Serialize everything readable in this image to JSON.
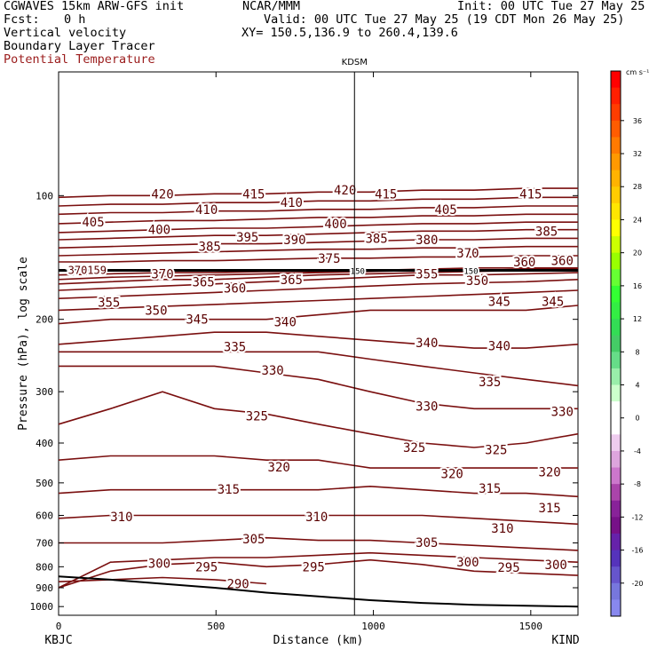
{
  "header": {
    "model": "CGWAVES 15km ARW-GFS init",
    "org": "NCAR/MMM",
    "init": "Init: 00 UTC Tue 27 May 25",
    "fcst_label": "Fcst:",
    "fcst_value": "0 h",
    "valid": "Valid: 00 UTC Tue 27 May 25 (19 CDT Mon 26 May 25)",
    "field1": "Vertical velocity",
    "xy": "XY= 150.5,136.9 to 260.4,139.6",
    "field2": "Boundary Layer Tracer",
    "field3": "Potential Temperature"
  },
  "chart_data": {
    "type": "contour cross-section",
    "xlabel": "Distance (km)",
    "ylabel": "Pressure (hPa), log scale",
    "xlim": [
      0,
      1650
    ],
    "ylim": [
      1050,
      50
    ],
    "x_ticks": [
      0,
      500,
      1000,
      1500
    ],
    "y_ticks": [
      100,
      200,
      300,
      400,
      500,
      600,
      700,
      800,
      900,
      1000
    ],
    "station_top": "KDSM",
    "station_top_x": 940,
    "station_left": "KBJC",
    "station_right": "KIND",
    "colorbar": {
      "unit": "cm s⁻¹",
      "tick_labels": [
        "36",
        "32",
        "28",
        "24",
        "20",
        "16",
        "12",
        "8",
        "4",
        "0",
        "-4",
        "-8",
        "-12",
        "-16",
        "-20"
      ],
      "colors": [
        "#ff0000",
        "#ff1f00",
        "#ff3d00",
        "#ff5c00",
        "#ff7a00",
        "#ff9900",
        "#ffb300",
        "#ffcc00",
        "#ffe600",
        "#ffff00",
        "#ccff00",
        "#99ff00",
        "#66ff33",
        "#33ff33",
        "#33ee44",
        "#33dd55",
        "#44cc66",
        "#66dd88",
        "#99eeaa",
        "#ccffcc",
        "#ffffff",
        "#ffffff",
        "#eeccee",
        "#dda5dd",
        "#cc77cc",
        "#aa44aa",
        "#882299",
        "#771188",
        "#6622aa",
        "#5533bb",
        "#6655cc",
        "#7777dd",
        "#8888ee"
      ]
    },
    "tracer_contour_label": "150",
    "isentropes": [
      {
        "theta": 290,
        "p": [
          870,
          860,
          850,
          860,
          880
        ]
      },
      {
        "theta": 295,
        "p": [
          900,
          820,
          790,
          780,
          800,
          790,
          770,
          790,
          820,
          830,
          840
        ]
      },
      {
        "theta": 300,
        "p": [
          900,
          780,
          770,
          760,
          760,
          750,
          740,
          750,
          760,
          770,
          780
        ]
      },
      {
        "theta": 305,
        "p": [
          700,
          700,
          700,
          690,
          680,
          690,
          690,
          700,
          710,
          720,
          730
        ]
      },
      {
        "theta": 310,
        "p": [
          610,
          600,
          600,
          600,
          600,
          600,
          600,
          600,
          610,
          620,
          630
        ]
      },
      {
        "theta": 315,
        "p": [
          530,
          520,
          520,
          520,
          520,
          520,
          510,
          520,
          530,
          530,
          540
        ]
      },
      {
        "theta": 320,
        "p": [
          440,
          430,
          430,
          430,
          440,
          440,
          460,
          460,
          460,
          460,
          460
        ]
      },
      {
        "theta": 325,
        "p": [
          360,
          330,
          300,
          330,
          340,
          360,
          380,
          400,
          410,
          400,
          380
        ]
      },
      {
        "theta": 330,
        "p": [
          260,
          260,
          260,
          260,
          270,
          280,
          300,
          320,
          330,
          330,
          330
        ]
      },
      {
        "theta": 335,
        "p": [
          240,
          240,
          240,
          240,
          240,
          240,
          250,
          260,
          270,
          280,
          290
        ]
      },
      {
        "theta": 340,
        "p": [
          230,
          225,
          220,
          215,
          215,
          220,
          225,
          230,
          235,
          235,
          230
        ]
      },
      {
        "theta": 345,
        "p": [
          205,
          200,
          200,
          200,
          200,
          195,
          190,
          190,
          190,
          190,
          185
        ]
      },
      {
        "theta": 350,
        "p": [
          190,
          188,
          186,
          184,
          182,
          180,
          178,
          176,
          174,
          172,
          170
        ]
      },
      {
        "theta": 355,
        "p": [
          178,
          176,
          174,
          172,
          170,
          168,
          166,
          164,
          163,
          162,
          160
        ]
      },
      {
        "theta": 360,
        "p": [
          170,
          168,
          166,
          164,
          162,
          160,
          158,
          156,
          156,
          155,
          154
        ]
      },
      {
        "theta": 365,
        "p": [
          164,
          162,
          160,
          160,
          158,
          156,
          155,
          154,
          153,
          152,
          152
        ]
      },
      {
        "theta": 370,
        "p": [
          160,
          158,
          157,
          156,
          155,
          154,
          153,
          152,
          152,
          151,
          151
        ]
      },
      {
        "theta": 375,
        "p": [
          156,
          155,
          154,
          154,
          153,
          153,
          152,
          151,
          150,
          150,
          150
        ]
      },
      {
        "theta": 380,
        "p": [
          145,
          145,
          144,
          144,
          143,
          142,
          142,
          141,
          141,
          140,
          140
        ]
      },
      {
        "theta": 385,
        "p": [
          140,
          139,
          138,
          137,
          136,
          135,
          135,
          134,
          134,
          133,
          133
        ]
      },
      {
        "theta": 390,
        "p": [
          134,
          133,
          132,
          131,
          131,
          130,
          129,
          128,
          128,
          127,
          127
        ]
      },
      {
        "theta": 395,
        "p": [
          128,
          127,
          126,
          125,
          125,
          124,
          123,
          122,
          122,
          121,
          121
        ]
      },
      {
        "theta": 400,
        "p": [
          123,
          122,
          121,
          120,
          120,
          119,
          118,
          117,
          117,
          116,
          116
        ]
      },
      {
        "theta": 405,
        "p": [
          117,
          116,
          115,
          115,
          114,
          113,
          113,
          112,
          112,
          111,
          111
        ]
      },
      {
        "theta": 410,
        "p": [
          111,
          110,
          110,
          109,
          109,
          108,
          108,
          107,
          107,
          106,
          106
        ]
      },
      {
        "theta": 415,
        "p": [
          106,
          105,
          105,
          104,
          104,
          103,
          103,
          102,
          102,
          101,
          101
        ]
      },
      {
        "theta": 420,
        "p": [
          101,
          100,
          100,
          99,
          99,
          98,
          98,
          97,
          97,
          96,
          96
        ]
      }
    ],
    "isentrope_x": [
      0,
      165,
      330,
      495,
      660,
      825,
      990,
      1155,
      1320,
      1485,
      1650
    ],
    "contour_labels": [
      {
        "text": "420",
        "x": 330,
        "p": 99
      },
      {
        "text": "415",
        "x": 620,
        "p": 99
      },
      {
        "text": "420",
        "x": 910,
        "p": 97
      },
      {
        "text": "415",
        "x": 1040,
        "p": 99
      },
      {
        "text": "415",
        "x": 1500,
        "p": 99
      },
      {
        "text": "410",
        "x": 470,
        "p": 108
      },
      {
        "text": "410",
        "x": 740,
        "p": 104
      },
      {
        "text": "405",
        "x": 110,
        "p": 116
      },
      {
        "text": "405",
        "x": 1230,
        "p": 108
      },
      {
        "text": "400",
        "x": 320,
        "p": 121
      },
      {
        "text": "400",
        "x": 880,
        "p": 117
      },
      {
        "text": "395",
        "x": 600,
        "p": 126
      },
      {
        "text": "390",
        "x": 750,
        "p": 128
      },
      {
        "text": "385",
        "x": 480,
        "p": 133
      },
      {
        "text": "385",
        "x": 1010,
        "p": 127
      },
      {
        "text": "385",
        "x": 1550,
        "p": 122
      },
      {
        "text": "380",
        "x": 1170,
        "p": 128
      },
      {
        "text": "370",
        "x": 1300,
        "p": 138
      },
      {
        "text": "375",
        "x": 860,
        "p": 142
      },
      {
        "text": "370",
        "x": 330,
        "p": 155
      },
      {
        "text": "365",
        "x": 460,
        "p": 162
      },
      {
        "text": "360",
        "x": 560,
        "p": 168
      },
      {
        "text": "365",
        "x": 740,
        "p": 160
      },
      {
        "text": "355",
        "x": 1170,
        "p": 155
      },
      {
        "text": "350",
        "x": 1330,
        "p": 161
      },
      {
        "text": "355",
        "x": 160,
        "p": 182
      },
      {
        "text": "350",
        "x": 310,
        "p": 190
      },
      {
        "text": "345",
        "x": 440,
        "p": 200
      },
      {
        "text": "345",
        "x": 1400,
        "p": 181
      },
      {
        "text": "345",
        "x": 1570,
        "p": 181
      },
      {
        "text": "360",
        "x": 1480,
        "p": 145
      },
      {
        "text": "360",
        "x": 1600,
        "p": 144
      },
      {
        "text": "340",
        "x": 720,
        "p": 203
      },
      {
        "text": "335",
        "x": 560,
        "p": 233
      },
      {
        "text": "340",
        "x": 1170,
        "p": 228
      },
      {
        "text": "340",
        "x": 1400,
        "p": 232
      },
      {
        "text": "330",
        "x": 680,
        "p": 266
      },
      {
        "text": "335",
        "x": 1370,
        "p": 284
      },
      {
        "text": "325",
        "x": 630,
        "p": 344
      },
      {
        "text": "330",
        "x": 1170,
        "p": 325
      },
      {
        "text": "330",
        "x": 1600,
        "p": 335
      },
      {
        "text": "325",
        "x": 1130,
        "p": 410
      },
      {
        "text": "325",
        "x": 1390,
        "p": 415
      },
      {
        "text": "320",
        "x": 700,
        "p": 458
      },
      {
        "text": "320",
        "x": 1250,
        "p": 475
      },
      {
        "text": "320",
        "x": 1560,
        "p": 470
      },
      {
        "text": "315",
        "x": 540,
        "p": 518
      },
      {
        "text": "315",
        "x": 1370,
        "p": 515
      },
      {
        "text": "315",
        "x": 1560,
        "p": 575
      },
      {
        "text": "310",
        "x": 200,
        "p": 605
      },
      {
        "text": "310",
        "x": 820,
        "p": 605
      },
      {
        "text": "310",
        "x": 1410,
        "p": 645
      },
      {
        "text": "305",
        "x": 620,
        "p": 685
      },
      {
        "text": "305",
        "x": 1170,
        "p": 698
      },
      {
        "text": "300",
        "x": 320,
        "p": 785
      },
      {
        "text": "295",
        "x": 470,
        "p": 800
      },
      {
        "text": "295",
        "x": 810,
        "p": 800
      },
      {
        "text": "300",
        "x": 1300,
        "p": 780
      },
      {
        "text": "295",
        "x": 1430,
        "p": 802
      },
      {
        "text": "300",
        "x": 1580,
        "p": 790
      },
      {
        "text": "290",
        "x": 570,
        "p": 880
      }
    ],
    "terrain_p": [
      845,
      860,
      880,
      900,
      925,
      945,
      965,
      980,
      990,
      995,
      1000
    ],
    "tropopause_label_left": "370159",
    "tropopause_label_right": "360"
  }
}
